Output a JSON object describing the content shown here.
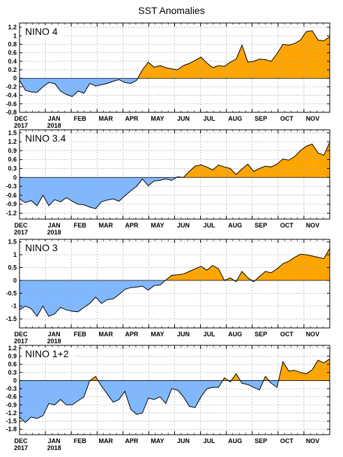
{
  "figure": {
    "title": "SST Anomalies"
  },
  "colors": {
    "positive": "#ffa500",
    "negative": "#80b8ff",
    "line": "#000000",
    "grid": "#aaaaaa"
  },
  "chart_data": [
    {
      "type": "area",
      "title": "NINO 4",
      "months": [
        {
          "label": "DEC",
          "year": "2017"
        },
        {
          "label": "JAN",
          "year": "2018"
        },
        {
          "label": "FEB",
          "year": ""
        },
        {
          "label": "MAR",
          "year": ""
        },
        {
          "label": "APR",
          "year": ""
        },
        {
          "label": "MAY",
          "year": ""
        },
        {
          "label": "JUN",
          "year": ""
        },
        {
          "label": "JUL",
          "year": ""
        },
        {
          "label": "AUG",
          "year": ""
        },
        {
          "label": "SEP",
          "year": ""
        },
        {
          "label": "OCT",
          "year": ""
        },
        {
          "label": "NOV",
          "year": ""
        }
      ],
      "ylim": [
        -0.8,
        1.3
      ],
      "yticks": [
        1.2,
        1,
        0.8,
        0.6,
        0.4,
        0.2,
        0,
        -0.2,
        -0.4,
        -0.6,
        -0.8
      ],
      "ytick_labels": [
        "1.2",
        "1",
        "0.8",
        "0.6",
        "0.4",
        "0.2",
        "0",
        "-0.2",
        "-0.4",
        "-0.6",
        "-0.8"
      ],
      "values": [
        -0.05,
        -0.28,
        -0.32,
        -0.33,
        -0.2,
        -0.1,
        -0.12,
        -0.3,
        -0.38,
        -0.43,
        -0.3,
        -0.35,
        -0.12,
        -0.18,
        -0.15,
        -0.12,
        -0.07,
        -0.03,
        -0.1,
        -0.12,
        -0.05,
        0.2,
        0.38,
        0.26,
        0.3,
        0.25,
        0.22,
        0.2,
        0.3,
        0.35,
        0.42,
        0.5,
        0.36,
        0.25,
        0.3,
        0.28,
        0.38,
        0.45,
        0.78,
        0.38,
        0.4,
        0.45,
        0.44,
        0.4,
        0.58,
        0.8,
        0.78,
        0.82,
        0.9,
        1.1,
        1.12,
        0.9,
        0.88,
        0.98
      ]
    },
    {
      "type": "area",
      "title": "NINO 3.4",
      "months": [
        {
          "label": "DEC",
          "year": "2017"
        },
        {
          "label": "JAN",
          "year": "2018"
        },
        {
          "label": "FEB",
          "year": ""
        },
        {
          "label": "MAR",
          "year": ""
        },
        {
          "label": "APR",
          "year": ""
        },
        {
          "label": "MAY",
          "year": ""
        },
        {
          "label": "JUN",
          "year": ""
        },
        {
          "label": "JUL",
          "year": ""
        },
        {
          "label": "AUG",
          "year": ""
        },
        {
          "label": "SEP",
          "year": ""
        },
        {
          "label": "OCT",
          "year": ""
        },
        {
          "label": "NOV",
          "year": ""
        }
      ],
      "ylim": [
        -1.4,
        1.6
      ],
      "yticks": [
        1.5,
        1.2,
        0.9,
        0.6,
        0.3,
        0,
        -0.3,
        -0.6,
        -0.9,
        -1.2
      ],
      "ytick_labels": [
        "1.5",
        "1.2",
        "0.9",
        "0.6",
        "0.3",
        "0",
        "-0.3",
        "-0.6",
        "-0.9",
        "-1.2"
      ],
      "values": [
        -0.72,
        -0.85,
        -0.78,
        -0.95,
        -0.6,
        -0.95,
        -0.75,
        -0.82,
        -0.68,
        -0.8,
        -0.9,
        -0.92,
        -1.0,
        -1.05,
        -0.82,
        -0.76,
        -0.72,
        -0.8,
        -0.62,
        -0.45,
        -0.3,
        -0.05,
        -0.28,
        -0.12,
        -0.1,
        -0.05,
        -0.1,
        0.02,
        0.0,
        0.2,
        0.38,
        0.42,
        0.35,
        0.25,
        0.42,
        0.35,
        0.3,
        0.1,
        0.28,
        0.45,
        0.2,
        0.3,
        0.38,
        0.35,
        0.45,
        0.62,
        0.58,
        0.7,
        0.9,
        1.05,
        1.12,
        0.82,
        0.75,
        1.18
      ]
    },
    {
      "type": "area",
      "title": "NINO 3",
      "months": [
        {
          "label": "DEC",
          "year": "2017"
        },
        {
          "label": "JAN",
          "year": "2018"
        },
        {
          "label": "FEB",
          "year": ""
        },
        {
          "label": "MAR",
          "year": ""
        },
        {
          "label": "APR",
          "year": ""
        },
        {
          "label": "MAY",
          "year": ""
        },
        {
          "label": "JUN",
          "year": ""
        },
        {
          "label": "JUL",
          "year": ""
        },
        {
          "label": "AUG",
          "year": ""
        },
        {
          "label": "SEP",
          "year": ""
        },
        {
          "label": "OCT",
          "year": ""
        },
        {
          "label": "NOV",
          "year": ""
        }
      ],
      "ylim": [
        -1.85,
        1.6
      ],
      "yticks": [
        1.5,
        1,
        0.5,
        0,
        -0.5,
        -1,
        -1.5
      ],
      "ytick_labels": [
        "1.5",
        "1",
        "0.5",
        "0",
        "-0.5",
        "-1",
        "-1.5"
      ],
      "values": [
        -1.15,
        -1.0,
        -1.1,
        -1.4,
        -1.0,
        -1.4,
        -1.3,
        -1.05,
        -1.15,
        -1.2,
        -1.22,
        -1.05,
        -0.9,
        -0.65,
        -0.9,
        -0.75,
        -0.72,
        -0.55,
        -0.35,
        -0.28,
        -0.26,
        -0.22,
        -0.38,
        -0.2,
        -0.18,
        0.02,
        0.2,
        0.22,
        0.25,
        0.35,
        0.45,
        0.55,
        0.4,
        0.58,
        0.45,
        0.0,
        0.1,
        -0.05,
        0.35,
        0.1,
        -0.05,
        0.15,
        0.35,
        0.3,
        0.45,
        0.65,
        0.75,
        0.9,
        1.02,
        1.0,
        0.95,
        0.9,
        0.85,
        1.25
      ]
    },
    {
      "type": "area",
      "title": "NINO 1+2",
      "months": [
        {
          "label": "DEC",
          "year": "2017"
        },
        {
          "label": "JAN",
          "year": "2018"
        },
        {
          "label": "FEB",
          "year": ""
        },
        {
          "label": "MAR",
          "year": ""
        },
        {
          "label": "APR",
          "year": ""
        },
        {
          "label": "MAY",
          "year": ""
        },
        {
          "label": "JUN",
          "year": ""
        },
        {
          "label": "JUL",
          "year": ""
        },
        {
          "label": "AUG",
          "year": ""
        },
        {
          "label": "SEP",
          "year": ""
        },
        {
          "label": "OCT",
          "year": ""
        },
        {
          "label": "NOV",
          "year": ""
        }
      ],
      "ylim": [
        -2.0,
        1.3
      ],
      "yticks": [
        1.2,
        0.9,
        0.6,
        0.3,
        0,
        -0.3,
        -0.6,
        -0.9,
        -1.2,
        -1.5,
        -1.8
      ],
      "ytick_labels": [
        "1.2",
        "0.9",
        "0.6",
        "0.3",
        "0",
        "-0.3",
        "-0.6",
        "-0.9",
        "-1.2",
        "-1.5",
        "-1.8"
      ],
      "values": [
        -1.35,
        -1.55,
        -1.35,
        -1.4,
        -1.3,
        -0.85,
        -0.9,
        -0.7,
        -0.9,
        -0.9,
        -0.75,
        -0.6,
        0.0,
        0.15,
        -0.2,
        -0.5,
        -0.8,
        -0.7,
        -0.4,
        -1.05,
        -1.25,
        -1.2,
        -0.65,
        -0.7,
        -0.6,
        -0.85,
        -0.3,
        -0.35,
        -0.6,
        -0.95,
        -1.0,
        -0.6,
        -0.3,
        -0.25,
        -0.25,
        0.1,
        -0.05,
        0.25,
        -0.1,
        -0.15,
        -0.25,
        -0.35,
        0.15,
        -0.1,
        -0.25,
        0.7,
        0.35,
        0.38,
        0.3,
        0.25,
        0.4,
        0.75,
        0.65,
        0.8
      ]
    }
  ]
}
